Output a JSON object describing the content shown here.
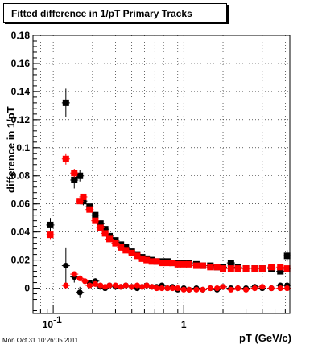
{
  "title": "Fitted difference in 1/pT  Primary Tracks",
  "timestamp": "Mon Oct 31 10:26:05 2011",
  "chart_data": {
    "type": "scatter",
    "title": "Fitted difference in 1/pT  Primary Tracks",
    "xlabel": "pT (GeV/c)",
    "ylabel": "difference in 1/pT",
    "x_scale": "log",
    "xlim": [
      0.07,
      6.5
    ],
    "ylim": [
      -0.018,
      0.18
    ],
    "x_tick_labels": [
      {
        "v": 0.1,
        "t": "10",
        "sup": "-1"
      },
      {
        "v": 1,
        "t": "1",
        "sup": ""
      }
    ],
    "y_ticks": [
      0,
      0.02,
      0.04,
      0.06,
      0.08,
      0.1,
      0.12,
      0.14,
      0.16,
      0.18
    ],
    "grid": true,
    "series": [
      {
        "name": "",
        "marker": "square",
        "color": "#000000",
        "x": [
          0.095,
          0.125,
          0.145,
          0.16,
          0.17,
          0.19,
          0.21,
          0.23,
          0.25,
          0.27,
          0.3,
          0.33,
          0.36,
          0.4,
          0.44,
          0.48,
          0.52,
          0.57,
          0.62,
          0.68,
          0.75,
          0.82,
          0.9,
          1.0,
          1.1,
          1.25,
          1.4,
          1.6,
          1.8,
          2.0,
          2.3,
          2.6,
          3.0,
          3.5,
          4.0,
          4.7,
          5.5,
          6.2
        ],
        "y": [
          0.045,
          0.132,
          0.077,
          0.08,
          0.062,
          0.058,
          0.052,
          0.046,
          0.042,
          0.037,
          0.034,
          0.031,
          0.029,
          0.026,
          0.024,
          0.022,
          0.021,
          0.02,
          0.019,
          0.019,
          0.019,
          0.018,
          0.018,
          0.018,
          0.018,
          0.017,
          0.016,
          0.016,
          0.015,
          0.015,
          0.018,
          0.015,
          0.014,
          0.014,
          0.014,
          0.014,
          0.012,
          0.023
        ],
        "yerr": [
          0.005,
          0.01,
          0.006,
          0.004,
          0.003,
          0.002,
          0.002,
          0.002,
          0.001,
          0.001,
          0.001,
          0.001,
          0.001,
          0.001,
          0.001,
          0.001,
          0.001,
          0.001,
          0.001,
          0.001,
          0.001,
          0.001,
          0.001,
          0.001,
          0.001,
          0.001,
          0.001,
          0.001,
          0.001,
          0.001,
          0.002,
          0.001,
          0.001,
          0.001,
          0.001,
          0.001,
          0.002,
          0.004
        ]
      },
      {
        "name": "",
        "marker": "square",
        "color": "#ff0000",
        "x": [
          0.095,
          0.125,
          0.145,
          0.16,
          0.17,
          0.19,
          0.21,
          0.23,
          0.25,
          0.27,
          0.3,
          0.33,
          0.36,
          0.4,
          0.44,
          0.48,
          0.52,
          0.57,
          0.62,
          0.68,
          0.75,
          0.82,
          0.9,
          1.0,
          1.1,
          1.25,
          1.4,
          1.6,
          1.8,
          2.0,
          2.3,
          2.6,
          3.0,
          3.5,
          4.0,
          4.7,
          5.5,
          6.2
        ],
        "y": [
          0.038,
          0.092,
          0.082,
          0.062,
          0.065,
          0.056,
          0.048,
          0.043,
          0.039,
          0.035,
          0.032,
          0.029,
          0.027,
          0.025,
          0.023,
          0.021,
          0.02,
          0.019,
          0.019,
          0.018,
          0.018,
          0.018,
          0.017,
          0.017,
          0.017,
          0.016,
          0.016,
          0.015,
          0.015,
          0.014,
          0.014,
          0.014,
          0.014,
          0.014,
          0.014,
          0.015,
          0.015,
          0.014
        ],
        "yerr": [
          0.003,
          0.004,
          0.003,
          0.002,
          0.002,
          0.001,
          0.001,
          0.001,
          0.001,
          0.001,
          0.001,
          0.001,
          0.001,
          0.001,
          0.001,
          0.001,
          0.001,
          0.001,
          0.001,
          0.001,
          0.001,
          0.001,
          0.001,
          0.001,
          0.001,
          0.001,
          0.001,
          0.001,
          0.001,
          0.001,
          0.001,
          0.001,
          0.001,
          0.001,
          0.001,
          0.001,
          0.001,
          0.001
        ]
      },
      {
        "name": "",
        "marker": "circle",
        "color": "#000000",
        "x": [
          0.125,
          0.145,
          0.16,
          0.19,
          0.21,
          0.23,
          0.25,
          0.27,
          0.3,
          0.33,
          0.36,
          0.4,
          0.44,
          0.48,
          0.52,
          0.57,
          0.62,
          0.68,
          0.75,
          0.82,
          0.9,
          1.0,
          1.1,
          1.25,
          1.4,
          1.6,
          1.8,
          2.0,
          2.3,
          2.6,
          3.0,
          3.5,
          4.0,
          4.7,
          5.5,
          6.2
        ],
        "y": [
          0.016,
          0.008,
          -0.003,
          0.004,
          0.005,
          0.001,
          0.0,
          0.002,
          0.001,
          0.001,
          0.002,
          0.001,
          0.0,
          0.001,
          0.002,
          0.001,
          0.001,
          0.002,
          0.0,
          0.001,
          -0.001,
          0.0,
          -0.001,
          0.0,
          -0.001,
          0.0,
          -0.001,
          0.001,
          0.0,
          0.0,
          0.0,
          0.001,
          0.0,
          0.0,
          0.002,
          0.002
        ],
        "yerr": [
          0.013,
          0.004,
          0.004,
          0.002,
          0.002,
          0.001,
          0.001,
          0.001,
          0.001,
          0.001,
          0.001,
          0.001,
          0.001,
          0.001,
          0.001,
          0.001,
          0.001,
          0.001,
          0.001,
          0.001,
          0.001,
          0.001,
          0.001,
          0.001,
          0.001,
          0.001,
          0.001,
          0.001,
          0.001,
          0.001,
          0.001,
          0.001,
          0.001,
          0.001,
          0.001,
          0.002
        ]
      },
      {
        "name": "",
        "marker": "circle",
        "color": "#ff0000",
        "x": [
          0.125,
          0.145,
          0.16,
          0.175,
          0.19,
          0.21,
          0.23,
          0.25,
          0.27,
          0.3,
          0.33,
          0.36,
          0.4,
          0.44,
          0.48,
          0.52,
          0.57,
          0.62,
          0.68,
          0.75,
          0.82,
          0.9,
          1.0,
          1.1,
          1.25,
          1.4,
          1.6,
          1.8,
          2.0,
          2.3,
          2.6,
          3.0,
          3.5,
          4.0,
          4.7,
          5.5,
          6.2
        ],
        "y": [
          0.002,
          0.01,
          0.007,
          0.005,
          0.002,
          0.003,
          0.002,
          0.001,
          0.002,
          0.002,
          0.001,
          0.002,
          0.001,
          0.002,
          0.001,
          0.002,
          0.001,
          0.0,
          0.0,
          0.0,
          0.0,
          0.0,
          -0.001,
          -0.001,
          -0.001,
          -0.001,
          0.0,
          0.0,
          0.001,
          -0.001,
          0.0,
          -0.001,
          0.0,
          0.001,
          0.0,
          0.0,
          0.0
        ],
        "yerr": [
          0.002,
          0.002,
          0.001,
          0.001,
          0.001,
          0.001,
          0.001,
          0.001,
          0.001,
          0.001,
          0.001,
          0.001,
          0.001,
          0.001,
          0.001,
          0.001,
          0.001,
          0.001,
          0.001,
          0.001,
          0.001,
          0.001,
          0.001,
          0.001,
          0.001,
          0.001,
          0.001,
          0.001,
          0.001,
          0.001,
          0.001,
          0.001,
          0.001,
          0.001,
          0.001,
          0.001,
          0.001
        ]
      }
    ]
  }
}
